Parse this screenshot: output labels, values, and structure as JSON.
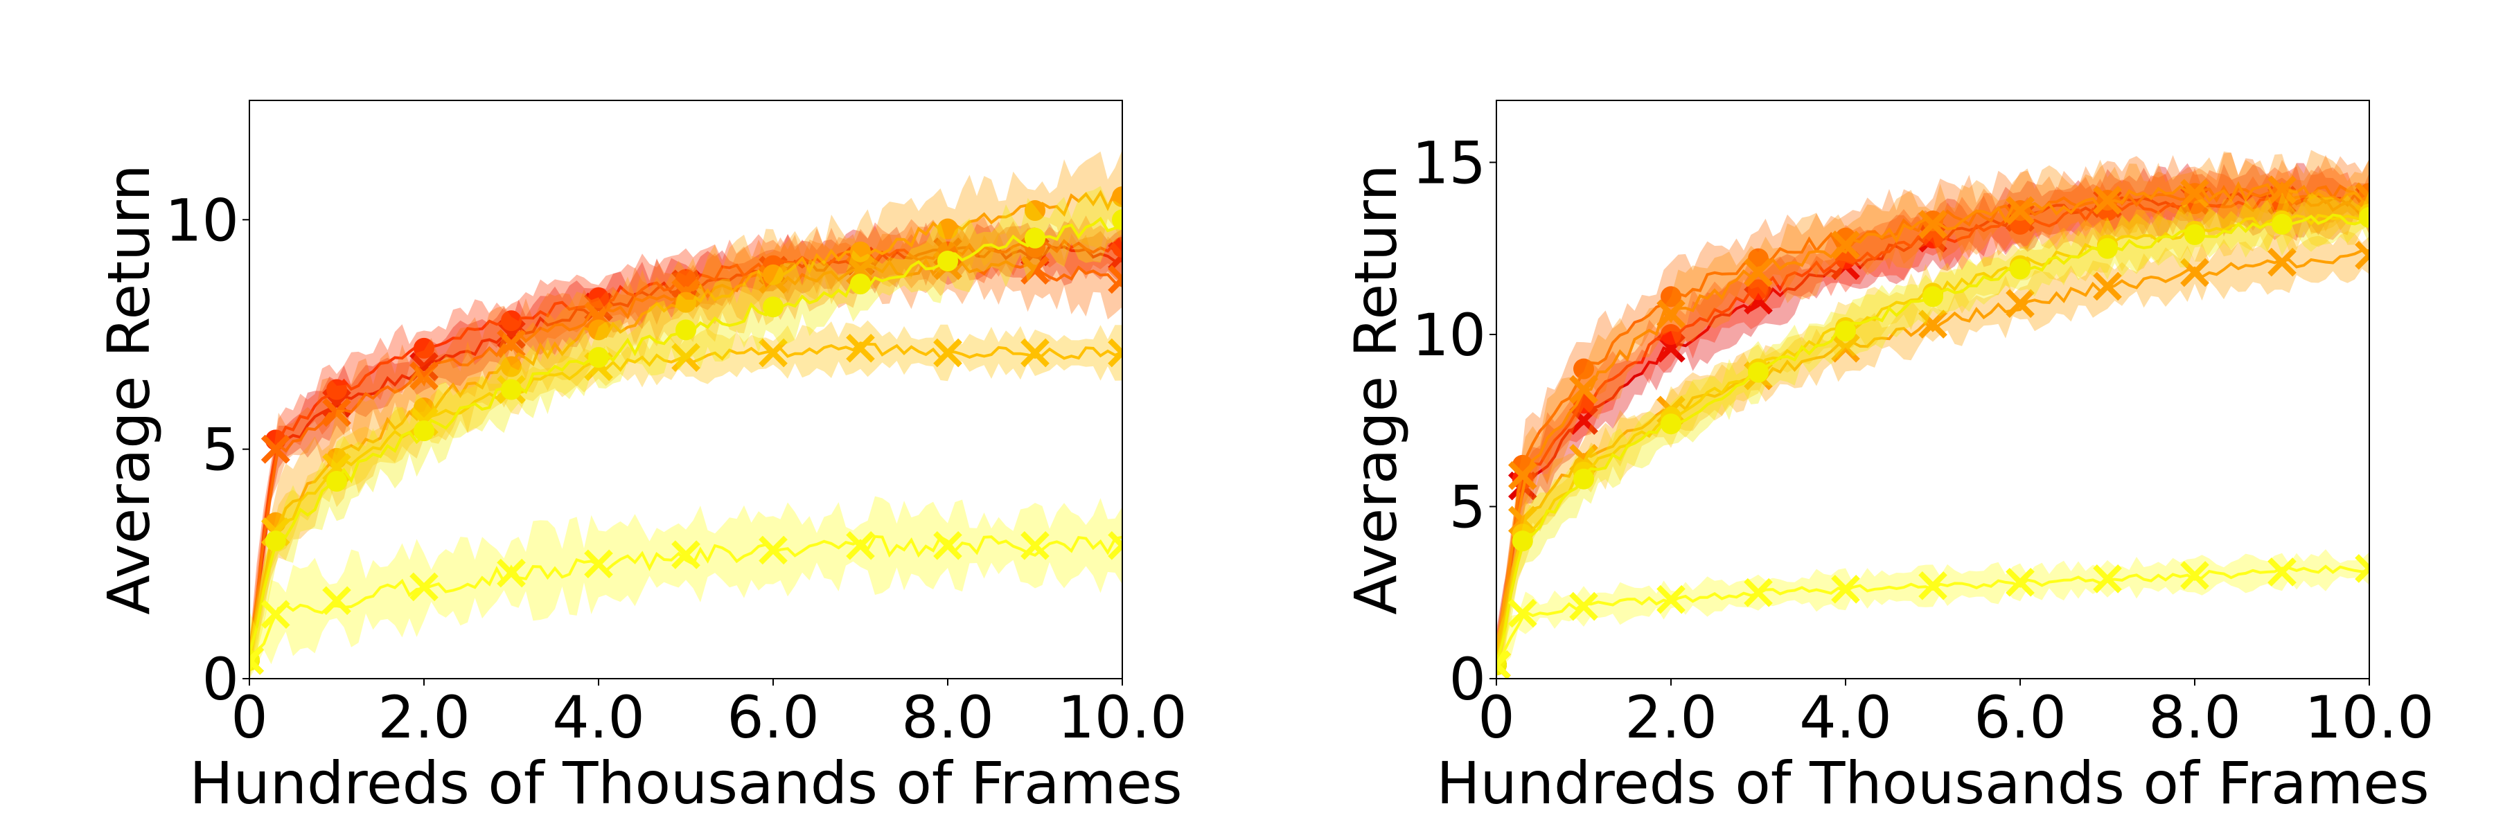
{
  "chart_data": [
    {
      "type": "line",
      "title": "",
      "xlabel": "Hundreds of Thousands of Frames",
      "ylabel": "Average Return",
      "xlim": [
        0,
        10
      ],
      "ylim": [
        0,
        12.6
      ],
      "xticks": [
        0,
        2,
        4,
        6,
        8,
        10
      ],
      "xtick_labels": [
        "0",
        "2.0",
        "4.0",
        "6.0",
        "8.0",
        "10.0"
      ],
      "yticks": [
        0,
        5,
        10
      ],
      "ytick_labels": [
        "0",
        "5",
        "10"
      ],
      "grid": false,
      "legend": "none",
      "series": [
        {
          "color": "#e00000",
          "marker": "x",
          "x": [
            0,
            0.3,
            1,
            2,
            3,
            4,
            5,
            6,
            7,
            8,
            9,
            10
          ],
          "y": [
            0.4,
            5.0,
            6.0,
            6.8,
            7.5,
            8.1,
            8.6,
            8.9,
            9.1,
            9.3,
            9.3,
            9.2
          ],
          "band": 0.5
        },
        {
          "color": "#ff3300",
          "marker": "o",
          "x": [
            0,
            0.3,
            1,
            2,
            3,
            4,
            5,
            6,
            7,
            8,
            9,
            10
          ],
          "y": [
            0.4,
            5.2,
            6.3,
            7.2,
            7.8,
            8.3,
            8.7,
            9.0,
            9.2,
            9.3,
            9.4,
            9.4
          ],
          "band": 0.5
        },
        {
          "color": "#ff6a00",
          "marker": "x",
          "x": [
            0,
            0.3,
            1,
            2,
            3,
            4,
            5,
            6,
            7,
            8,
            9,
            10
          ],
          "y": [
            0.4,
            5.0,
            5.8,
            6.6,
            7.3,
            7.9,
            8.4,
            8.7,
            8.9,
            9.0,
            8.9,
            8.7
          ],
          "band": 0.6
        },
        {
          "color": "#ffa000",
          "marker": "o",
          "x": [
            0,
            0.3,
            1,
            2,
            3,
            4,
            5,
            6,
            7,
            8,
            9,
            10
          ],
          "y": [
            0.4,
            3.4,
            4.8,
            5.9,
            6.8,
            7.6,
            8.2,
            8.8,
            9.3,
            9.8,
            10.2,
            10.5
          ],
          "band": 0.7
        },
        {
          "color": "#ffc000",
          "marker": "x",
          "x": [
            0,
            0.3,
            1,
            2,
            3,
            4,
            5,
            6,
            7,
            8,
            9,
            10
          ],
          "y": [
            0.4,
            3.2,
            4.6,
            5.6,
            6.3,
            6.8,
            7.0,
            7.1,
            7.2,
            7.1,
            7.1,
            7.1
          ],
          "band": 0.4
        },
        {
          "color": "#f2ef00",
          "marker": "o",
          "x": [
            0,
            0.3,
            1,
            2,
            3,
            4,
            5,
            6,
            7,
            8,
            9,
            10
          ],
          "y": [
            0.4,
            3.0,
            4.3,
            5.4,
            6.3,
            7.0,
            7.6,
            8.1,
            8.6,
            9.1,
            9.6,
            10.0
          ],
          "band": 0.6
        },
        {
          "color": "#ffff1a",
          "marker": "x",
          "x": [
            0,
            0.3,
            1,
            2,
            3,
            4,
            5,
            6,
            7,
            8,
            9,
            10
          ],
          "y": [
            0.4,
            1.4,
            1.7,
            2.0,
            2.3,
            2.5,
            2.7,
            2.8,
            2.9,
            2.9,
            2.9,
            2.9
          ],
          "band": 0.7
        }
      ]
    },
    {
      "type": "line",
      "title": "",
      "xlabel": "Hundreds of Thousands of Frames",
      "ylabel": "Average Return",
      "xlim": [
        0,
        10
      ],
      "ylim": [
        0,
        16.8
      ],
      "xticks": [
        0,
        2,
        4,
        6,
        8,
        10
      ],
      "xtick_labels": [
        "0",
        "2.0",
        "4.0",
        "6.0",
        "8.0",
        "10.0"
      ],
      "yticks": [
        0,
        5,
        10,
        15
      ],
      "ytick_labels": [
        "0",
        "5",
        "10",
        "15"
      ],
      "grid": false,
      "legend": "none",
      "series": [
        {
          "color": "#e00000",
          "marker": "x",
          "x": [
            0,
            0.3,
            1,
            2,
            3,
            4,
            5,
            6,
            7,
            8,
            9,
            10
          ],
          "y": [
            0.4,
            5.6,
            7.5,
            9.6,
            11.0,
            12.0,
            12.8,
            13.4,
            13.8,
            13.9,
            13.9,
            13.9
          ],
          "band": 0.7
        },
        {
          "color": "#ff2200",
          "marker": "o",
          "x": [
            0,
            0.3,
            1,
            2,
            3,
            4,
            5,
            6,
            7,
            8,
            9,
            10
          ],
          "y": [
            0.4,
            5.8,
            8.0,
            10.0,
            11.3,
            12.2,
            12.8,
            13.2,
            13.6,
            13.8,
            13.8,
            13.8
          ],
          "band": 0.7
        },
        {
          "color": "#ff6a00",
          "marker": "o",
          "x": [
            0,
            0.3,
            1,
            2,
            3,
            4,
            5,
            6,
            7,
            8,
            9,
            10
          ],
          "y": [
            0.4,
            6.2,
            9.0,
            11.1,
            12.2,
            12.8,
            13.3,
            13.6,
            13.9,
            14.1,
            14.1,
            14.1
          ],
          "band": 0.8
        },
        {
          "color": "#ff8c00",
          "marker": "x",
          "x": [
            0,
            0.3,
            1,
            2,
            3,
            4,
            5,
            6,
            7,
            8,
            9,
            10
          ],
          "y": [
            0.4,
            5.9,
            8.4,
            10.6,
            11.8,
            12.6,
            13.2,
            13.6,
            13.9,
            14.1,
            14.2,
            14.0
          ],
          "band": 0.8
        },
        {
          "color": "#ffa000",
          "marker": "x",
          "x": [
            0,
            0.3,
            1,
            2,
            3,
            4,
            5,
            6,
            7,
            8,
            9,
            10
          ],
          "y": [
            0.4,
            4.6,
            6.4,
            7.8,
            8.8,
            9.6,
            10.3,
            10.9,
            11.4,
            11.8,
            12.1,
            12.3
          ],
          "band": 0.6
        },
        {
          "color": "#ffc400",
          "marker": "o",
          "x": [
            0,
            0.3,
            1,
            2,
            3,
            4,
            5,
            6,
            7,
            8,
            9,
            10
          ],
          "y": [
            0.4,
            4.2,
            6.0,
            7.6,
            9.0,
            10.2,
            11.2,
            12.0,
            12.6,
            13.0,
            13.3,
            13.5
          ],
          "band": 0.6
        },
        {
          "color": "#f2ef00",
          "marker": "o",
          "x": [
            0,
            0.3,
            1,
            2,
            3,
            4,
            5,
            6,
            7,
            8,
            9,
            10
          ],
          "y": [
            0.4,
            4.0,
            5.8,
            7.4,
            8.9,
            10.1,
            11.1,
            11.9,
            12.5,
            12.9,
            13.2,
            13.4
          ],
          "band": 0.6
        },
        {
          "color": "#ffff1a",
          "marker": "x",
          "x": [
            0,
            0.3,
            1,
            2,
            3,
            4,
            5,
            6,
            7,
            8,
            9,
            10
          ],
          "y": [
            0.4,
            1.9,
            2.1,
            2.3,
            2.5,
            2.6,
            2.7,
            2.8,
            2.9,
            3.0,
            3.1,
            3.2
          ],
          "band": 0.4
        }
      ]
    }
  ]
}
